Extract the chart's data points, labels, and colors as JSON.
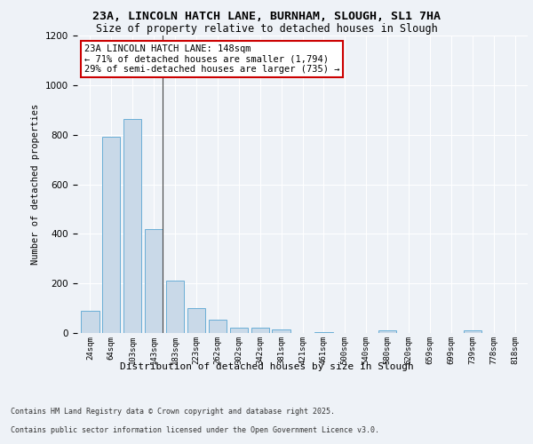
{
  "title_line1": "23A, LINCOLN HATCH LANE, BURNHAM, SLOUGH, SL1 7HA",
  "title_line2": "Size of property relative to detached houses in Slough",
  "xlabel": "Distribution of detached houses by size in Slough",
  "ylabel": "Number of detached properties",
  "categories": [
    "24sqm",
    "64sqm",
    "103sqm",
    "143sqm",
    "183sqm",
    "223sqm",
    "262sqm",
    "302sqm",
    "342sqm",
    "381sqm",
    "421sqm",
    "461sqm",
    "500sqm",
    "540sqm",
    "580sqm",
    "620sqm",
    "659sqm",
    "699sqm",
    "739sqm",
    "778sqm",
    "818sqm"
  ],
  "values": [
    90,
    790,
    865,
    420,
    210,
    100,
    55,
    20,
    20,
    15,
    0,
    5,
    0,
    0,
    10,
    0,
    0,
    0,
    10,
    0,
    0
  ],
  "bar_color": "#c9d9e8",
  "bar_edge_color": "#6aaed6",
  "highlight_line_index": 3,
  "annotation_text": "23A LINCOLN HATCH LANE: 148sqm\n← 71% of detached houses are smaller (1,794)\n29% of semi-detached houses are larger (735) →",
  "annotation_box_color": "#ffffff",
  "annotation_border_color": "#cc0000",
  "ylim": [
    0,
    1200
  ],
  "yticks": [
    0,
    200,
    400,
    600,
    800,
    1000,
    1200
  ],
  "footer_line1": "Contains HM Land Registry data © Crown copyright and database right 2025.",
  "footer_line2": "Contains public sector information licensed under the Open Government Licence v3.0.",
  "bg_color": "#eef2f7",
  "plot_bg_color": "#eef2f7"
}
